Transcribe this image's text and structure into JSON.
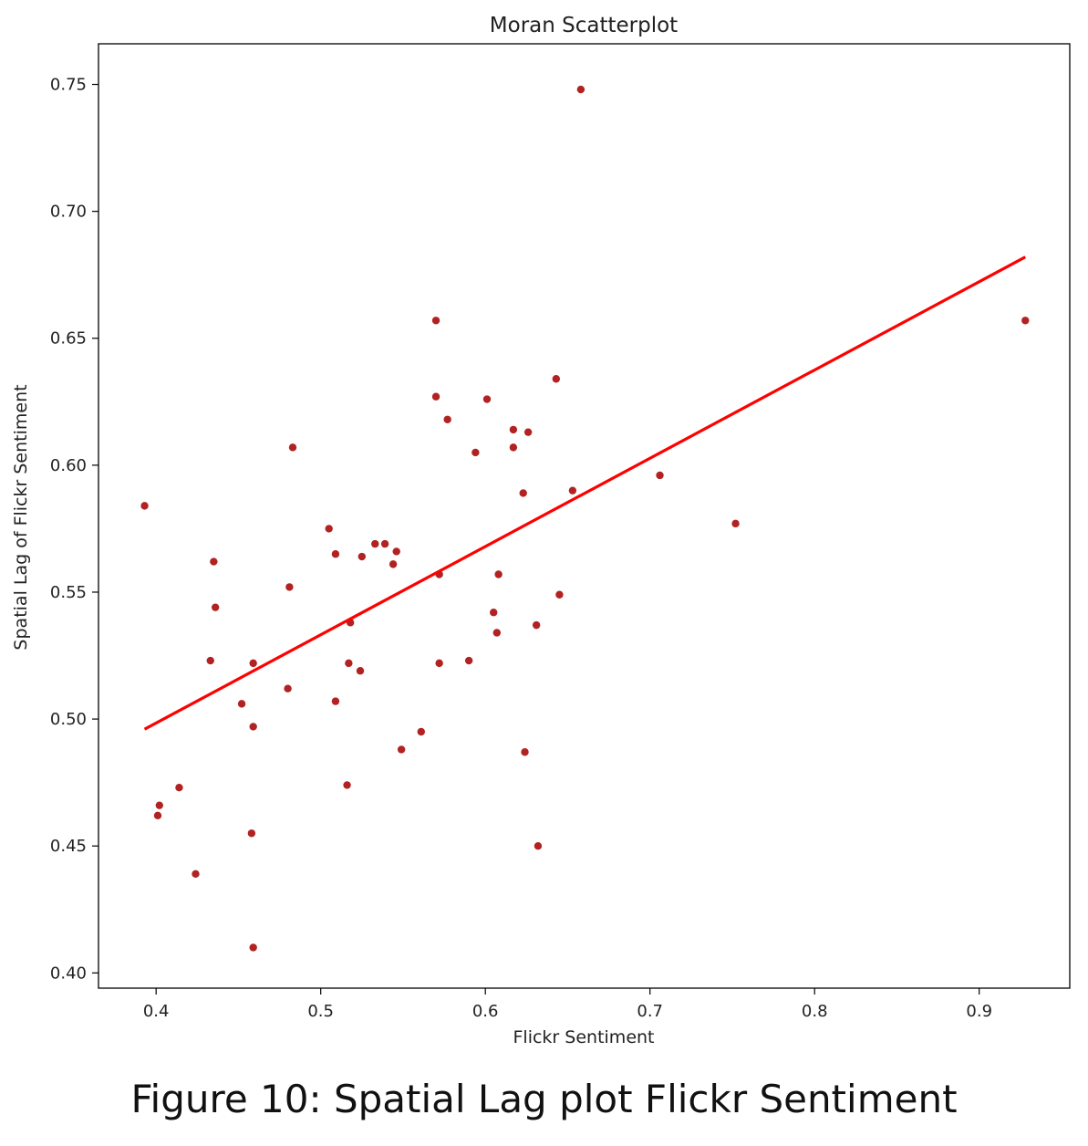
{
  "chart_data": {
    "type": "scatter",
    "title": "Moran Scatterplot",
    "xlabel": "Flickr Sentiment",
    "ylabel": "Spatial Lag of Flickr Sentiment",
    "xlim": [
      0.365,
      0.955
    ],
    "ylim": [
      0.394,
      0.766
    ],
    "x_ticks": [
      0.4,
      0.5,
      0.6,
      0.7,
      0.8,
      0.9
    ],
    "x_tick_labels": [
      "0.4",
      "0.5",
      "0.6",
      "0.7",
      "0.8",
      "0.9"
    ],
    "y_ticks": [
      0.4,
      0.45,
      0.5,
      0.55,
      0.6,
      0.65,
      0.7,
      0.75
    ],
    "y_tick_labels": [
      "0.40",
      "0.45",
      "0.50",
      "0.55",
      "0.60",
      "0.65",
      "0.70",
      "0.75"
    ],
    "grid": false,
    "series": [
      {
        "kind": "points",
        "color": "#b22222",
        "points": [
          [
            0.658,
            0.748
          ],
          [
            0.57,
            0.657
          ],
          [
            0.928,
            0.657
          ],
          [
            0.643,
            0.634
          ],
          [
            0.57,
            0.627
          ],
          [
            0.601,
            0.626
          ],
          [
            0.577,
            0.618
          ],
          [
            0.617,
            0.614
          ],
          [
            0.626,
            0.613
          ],
          [
            0.483,
            0.607
          ],
          [
            0.617,
            0.607
          ],
          [
            0.594,
            0.605
          ],
          [
            0.706,
            0.596
          ],
          [
            0.653,
            0.59
          ],
          [
            0.623,
            0.589
          ],
          [
            0.393,
            0.584
          ],
          [
            0.752,
            0.577
          ],
          [
            0.505,
            0.575
          ],
          [
            0.533,
            0.569
          ],
          [
            0.539,
            0.569
          ],
          [
            0.546,
            0.566
          ],
          [
            0.509,
            0.565
          ],
          [
            0.525,
            0.564
          ],
          [
            0.435,
            0.562
          ],
          [
            0.544,
            0.561
          ],
          [
            0.572,
            0.557
          ],
          [
            0.608,
            0.557
          ],
          [
            0.481,
            0.552
          ],
          [
            0.645,
            0.549
          ],
          [
            0.436,
            0.544
          ],
          [
            0.605,
            0.542
          ],
          [
            0.518,
            0.538
          ],
          [
            0.631,
            0.537
          ],
          [
            0.607,
            0.534
          ],
          [
            0.433,
            0.523
          ],
          [
            0.459,
            0.522
          ],
          [
            0.517,
            0.522
          ],
          [
            0.572,
            0.522
          ],
          [
            0.59,
            0.523
          ],
          [
            0.524,
            0.519
          ],
          [
            0.48,
            0.512
          ],
          [
            0.452,
            0.506
          ],
          [
            0.509,
            0.507
          ],
          [
            0.459,
            0.497
          ],
          [
            0.561,
            0.495
          ],
          [
            0.549,
            0.488
          ],
          [
            0.624,
            0.487
          ],
          [
            0.516,
            0.474
          ],
          [
            0.414,
            0.473
          ],
          [
            0.402,
            0.466
          ],
          [
            0.401,
            0.462
          ],
          [
            0.458,
            0.455
          ],
          [
            0.632,
            0.45
          ],
          [
            0.424,
            0.439
          ],
          [
            0.459,
            0.41
          ]
        ]
      },
      {
        "kind": "line",
        "color": "#ff0000",
        "points": [
          [
            0.393,
            0.496
          ],
          [
            0.928,
            0.682
          ]
        ]
      }
    ]
  },
  "caption": "Figure 10: Spatial Lag plot Flickr Sentiment"
}
